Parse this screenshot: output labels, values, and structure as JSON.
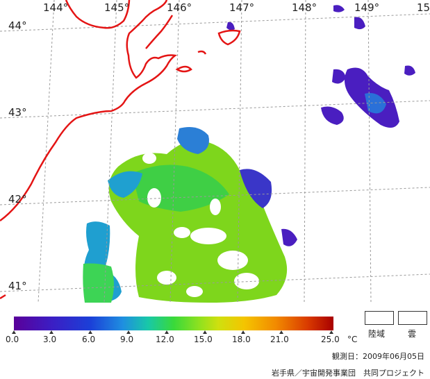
{
  "map": {
    "longitude_labels": [
      "144°",
      "145°",
      "146°",
      "147°",
      "148°",
      "149°",
      "15"
    ],
    "latitude_labels": [
      "44°",
      "43°",
      "42°",
      "41°"
    ]
  },
  "colorbar": {
    "ticks": [
      "0.0",
      "3.0",
      "6.0",
      "9.0",
      "12.0",
      "15.0",
      "18.0",
      "21.0",
      "25.0"
    ],
    "unit": "°C",
    "colors": [
      "#5a009a",
      "#1b40d8",
      "#18c8a8",
      "#39d93a",
      "#cfe00f",
      "#f28a00",
      "#a80000"
    ]
  },
  "legend": {
    "land_label": "陸域",
    "cloud_label": "雲"
  },
  "footer": {
    "observation_date": "観測日：2009年06月05日",
    "credit": "岩手県／宇宙開発事業団　共同プロジェクト"
  },
  "colors": {
    "coastline": "#e41414",
    "grid": "#9a9a9a"
  }
}
